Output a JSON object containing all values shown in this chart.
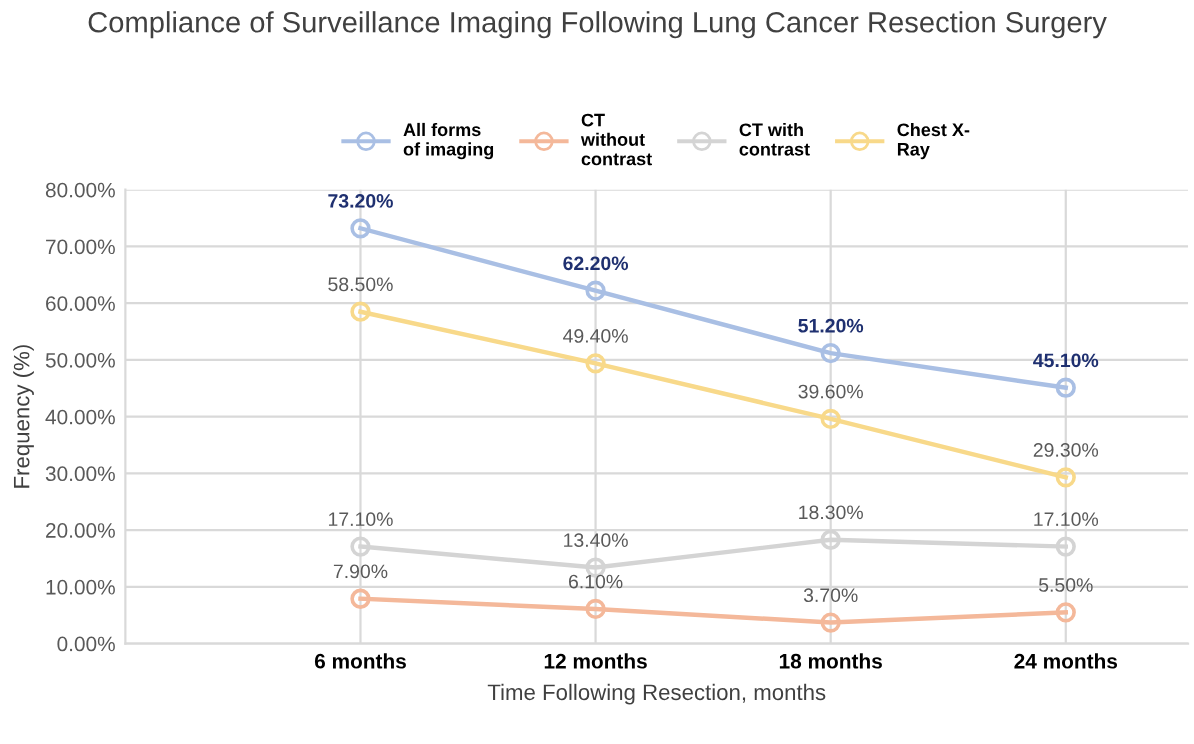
{
  "chart_data": {
    "type": "line",
    "title": "Compliance of Surveillance Imaging Following Lung Cancer Resection Surgery",
    "xlabel": "Time Following Resection, months",
    "ylabel": "Frequency (%)",
    "categories": [
      "6 months",
      "12 months",
      "18 months",
      "24 months"
    ],
    "series": [
      {
        "name": "All forms\nof imaging",
        "color": "#a9bfe4",
        "values": [
          73.2,
          62.2,
          51.2,
          45.1
        ],
        "value_labels": [
          "73.20%",
          "62.20%",
          "51.20%",
          "45.10%"
        ]
      },
      {
        "name": "CT\nwithout\ncontrast",
        "color": "#f4b89a",
        "values": [
          7.9,
          6.1,
          3.7,
          5.5
        ],
        "value_labels": [
          "7.90%",
          "6.10%",
          "3.70%",
          "5.50%"
        ]
      },
      {
        "name": "CT with\ncontrast",
        "color": "#d4d4d4",
        "values": [
          17.1,
          13.4,
          18.3,
          17.1
        ],
        "value_labels": [
          "17.10%",
          "13.40%",
          "18.30%",
          "17.10%"
        ]
      },
      {
        "name": "Chest X-\nRay",
        "color": "#f8d98a",
        "values": [
          58.5,
          49.4,
          39.6,
          29.3
        ],
        "value_labels": [
          "58.50%",
          "49.40%",
          "39.60%",
          "29.30%"
        ]
      }
    ],
    "ylim": [
      0,
      80
    ],
    "yticks": [
      {
        "value": 0,
        "label": "0.00%"
      },
      {
        "value": 10,
        "label": "10.00%"
      },
      {
        "value": 20,
        "label": "20.00%"
      },
      {
        "value": 30,
        "label": "30.00%"
      },
      {
        "value": 40,
        "label": "40.00%"
      },
      {
        "value": 50,
        "label": "50.00%"
      },
      {
        "value": 60,
        "label": "60.00%"
      },
      {
        "value": 70,
        "label": "70.00%"
      },
      {
        "value": 80,
        "label": "80.00%"
      }
    ],
    "grid": true,
    "legend": "top",
    "marker": "circle",
    "line_style": "solid"
  }
}
